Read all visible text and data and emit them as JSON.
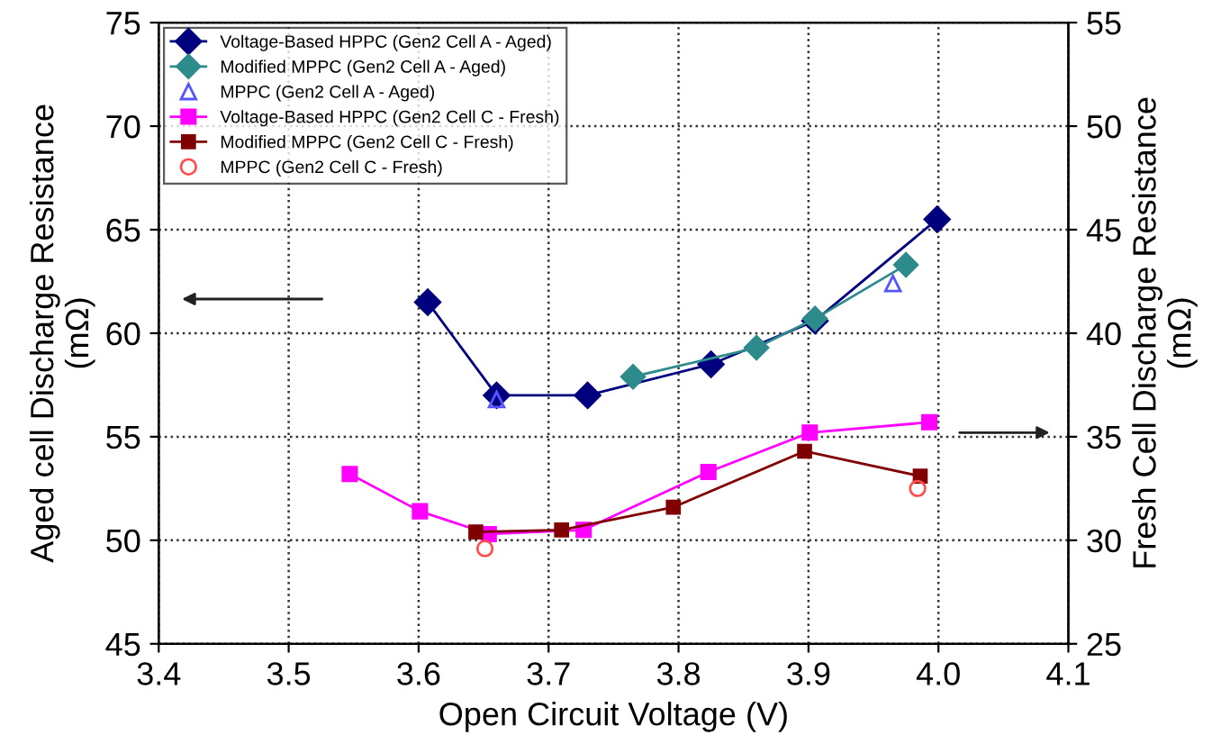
{
  "chart_data": {
    "type": "line",
    "xlabel": "Open Circuit Voltage (V)",
    "ylabel": "Aged cell Discharge Resistance\n(mΩ)",
    "y2label": "Fresh Cell Discharge Resistance\n(mΩ)",
    "xlim": [
      3.4,
      4.1
    ],
    "xticks": [
      {
        "value": 3.4,
        "label": "3.4"
      },
      {
        "value": 3.5,
        "label": "3.5"
      },
      {
        "value": 3.6,
        "label": "3.6"
      },
      {
        "value": 3.7,
        "label": "3.7"
      },
      {
        "value": 3.8,
        "label": "3.8"
      },
      {
        "value": 3.9,
        "label": "3.9"
      },
      {
        "value": 4.0,
        "label": "4.0"
      },
      {
        "value": 4.1,
        "label": "4.1"
      }
    ],
    "ylim": [
      45,
      75
    ],
    "yticks": [
      45,
      50,
      55,
      60,
      65,
      70,
      75
    ],
    "y2lim": [
      25,
      55
    ],
    "y2ticks": [
      25,
      30,
      35,
      40,
      45,
      50,
      55
    ],
    "grid": true,
    "legend": "top left",
    "line_style": "solid",
    "series": [
      {
        "name": "Voltage-Based HPPC (Gen2 Cell A - Aged)",
        "marker": "diamond",
        "color": "#00007f",
        "x": [
          3.607,
          3.66,
          3.73,
          3.825,
          3.905,
          3.999
        ],
        "values": [
          61.5,
          57.0,
          57.0,
          58.5,
          60.6,
          65.5
        ]
      },
      {
        "name": "Modified MPPC (Gen2 Cell A - Aged)",
        "marker": "diamond",
        "color": "#2e8b8b",
        "x": [
          3.765,
          3.86,
          3.905,
          3.975
        ],
        "values": [
          57.9,
          59.3,
          60.7,
          63.3
        ]
      },
      {
        "name": "MPPC (Gen2 Cell A - Aged)",
        "type": "scatter",
        "marker": "triangle",
        "color": "#5555ff",
        "x": [
          3.66,
          3.965
        ],
        "values": [
          56.8,
          62.4
        ]
      },
      {
        "name": "Voltage-Based HPPC (Gen2 Cell C - Fresh)",
        "marker": "square",
        "color": "#ff00ff",
        "axis": "y2",
        "x": [
          3.547,
          3.601,
          3.654,
          3.727,
          3.823,
          3.901,
          3.993
        ],
        "values": [
          33.2,
          31.4,
          30.3,
          30.5,
          33.3,
          35.2,
          35.7
        ]
      },
      {
        "name": "Modified MPPC (Gen2 Cell C - Fresh)",
        "marker": "square",
        "color": "#800000",
        "axis": "y2",
        "x": [
          3.644,
          3.71,
          3.796,
          3.897,
          3.986
        ],
        "values": [
          30.4,
          30.5,
          31.6,
          34.3,
          33.1
        ]
      },
      {
        "name": "MPPC (Gen2 Cell C - Fresh)",
        "type": "scatter",
        "marker": "circle",
        "color": "#ff5050",
        "axis": "y2",
        "x": [
          3.651,
          3.984
        ],
        "values": [
          29.6,
          32.5
        ]
      }
    ]
  }
}
